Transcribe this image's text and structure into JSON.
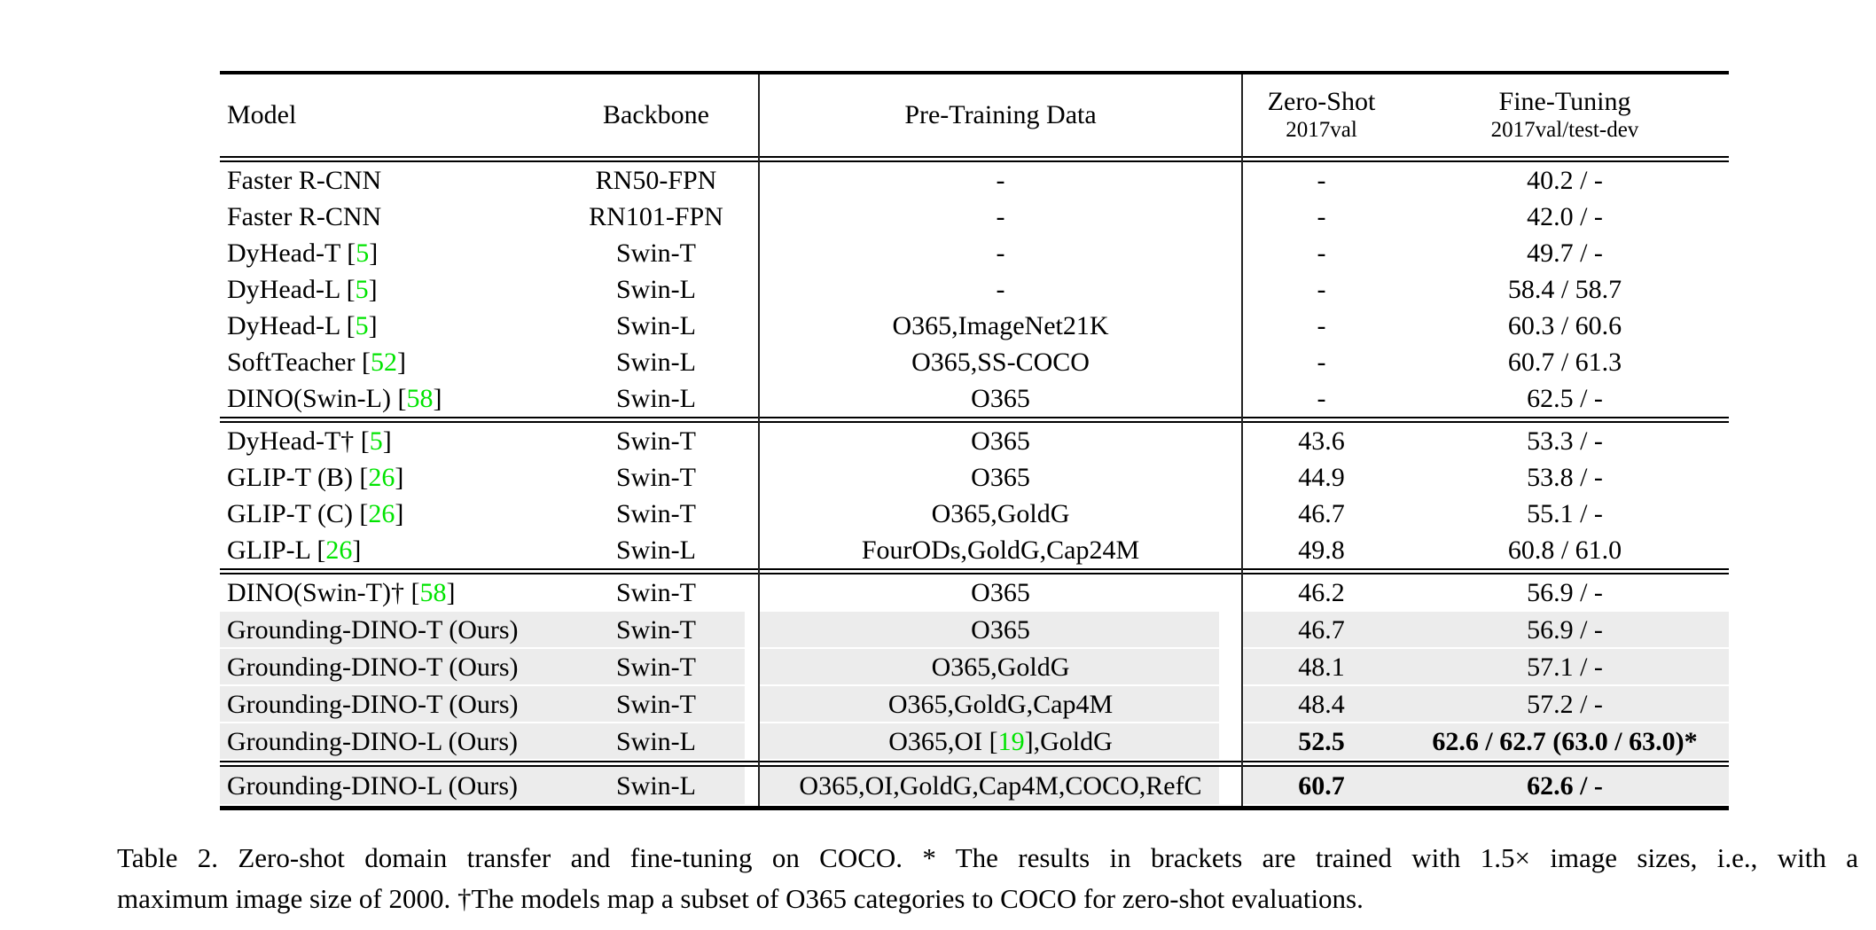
{
  "colors": {
    "citation_green": "#00e400",
    "row_highlight": "#ececec",
    "rule_black": "#000000",
    "page_background": "#ffffff"
  },
  "table": {
    "header": {
      "model": "Model",
      "backbone": "Backbone",
      "pretrain": "Pre-Training Data",
      "zeroshot_label": "Zero-Shot",
      "zeroshot_sublabel": "2017val",
      "finetune_label": "Fine-Tuning",
      "finetune_sublabel": "2017val/test-dev"
    },
    "sections": [
      {
        "rows": [
          {
            "model": "Faster R-CNN",
            "backbone": "RN50-FPN",
            "pretrain": "-",
            "zeroshot": "-",
            "finetune": "40.2 / -",
            "highlight": false,
            "bold": false
          },
          {
            "model": "Faster R-CNN",
            "backbone": "RN101-FPN",
            "pretrain": "-",
            "zeroshot": "-",
            "finetune": "42.0 / -",
            "highlight": false,
            "bold": false
          },
          {
            "model": "DyHead-T [5]",
            "backbone": "Swin-T",
            "pretrain": "-",
            "zeroshot": "-",
            "finetune": "49.7 / -",
            "highlight": false,
            "bold": false
          },
          {
            "model": "DyHead-L [5]",
            "backbone": "Swin-L",
            "pretrain": "-",
            "zeroshot": "-",
            "finetune": "58.4 / 58.7",
            "highlight": false,
            "bold": false
          },
          {
            "model": "DyHead-L [5]",
            "backbone": "Swin-L",
            "pretrain": "O365,ImageNet21K",
            "zeroshot": "-",
            "finetune": "60.3 / 60.6",
            "highlight": false,
            "bold": false
          },
          {
            "model": "SoftTeacher [52]",
            "backbone": "Swin-L",
            "pretrain": "O365,SS-COCO",
            "zeroshot": "-",
            "finetune": "60.7 / 61.3",
            "highlight": false,
            "bold": false
          },
          {
            "model": "DINO(Swin-L) [58]",
            "backbone": "Swin-L",
            "pretrain": "O365",
            "zeroshot": "-",
            "finetune": "62.5 / -",
            "highlight": false,
            "bold": false
          }
        ]
      },
      {
        "rows": [
          {
            "model": "DyHead-T† [5]",
            "backbone": "Swin-T",
            "pretrain": "O365",
            "zeroshot": "43.6",
            "finetune": "53.3 / -",
            "highlight": false,
            "bold": false
          },
          {
            "model": "GLIP-T (B) [26]",
            "backbone": "Swin-T",
            "pretrain": "O365",
            "zeroshot": "44.9",
            "finetune": "53.8 / -",
            "highlight": false,
            "bold": false
          },
          {
            "model": "GLIP-T (C) [26]",
            "backbone": "Swin-T",
            "pretrain": "O365,GoldG",
            "zeroshot": "46.7",
            "finetune": "55.1 / -",
            "highlight": false,
            "bold": false
          },
          {
            "model": "GLIP-L [26]",
            "backbone": "Swin-L",
            "pretrain": "FourODs,GoldG,Cap24M",
            "zeroshot": "49.8",
            "finetune": "60.8 / 61.0",
            "highlight": false,
            "bold": false
          }
        ]
      },
      {
        "rows": [
          {
            "model": "DINO(Swin-T)† [58]",
            "backbone": "Swin-T",
            "pretrain": "O365",
            "zeroshot": "46.2",
            "finetune": "56.9 / -",
            "highlight": false,
            "bold": false
          },
          {
            "model": "Grounding-DINO-T (Ours)",
            "backbone": "Swin-T",
            "pretrain": "O365",
            "zeroshot": "46.7",
            "finetune": "56.9 / -",
            "highlight": true,
            "bold": false
          },
          {
            "model": "Grounding-DINO-T (Ours)",
            "backbone": "Swin-T",
            "pretrain": "O365,GoldG",
            "zeroshot": "48.1",
            "finetune": "57.1 / -",
            "highlight": true,
            "bold": false
          },
          {
            "model": "Grounding-DINO-T (Ours)",
            "backbone": "Swin-T",
            "pretrain": "O365,GoldG,Cap4M",
            "zeroshot": "48.4",
            "finetune": "57.2 / -",
            "highlight": true,
            "bold": false
          },
          {
            "model": "Grounding-DINO-L (Ours)",
            "backbone": "Swin-L",
            "pretrain": "O365,OI [19],GoldG",
            "zeroshot": "52.5",
            "finetune": "62.6 / 62.7 (63.0 / 63.0)*",
            "highlight": true,
            "bold": true
          }
        ]
      },
      {
        "rows": [
          {
            "model": "Grounding-DINO-L (Ours)",
            "backbone": "Swin-L",
            "pretrain": "O365,OI,GoldG,Cap4M,COCO,RefC",
            "zeroshot": "60.7",
            "finetune": "62.6 / -",
            "highlight": true,
            "bold": true
          }
        ]
      }
    ]
  },
  "caption": {
    "line1": "Table 2.  Zero-shot domain transfer and fine-tuning on COCO. * The results in brackets are trained with 1.5× image sizes, i.e., with a",
    "line2": "maximum image size of 2000. †The models map a subset of O365 categories to COCO for zero-shot evaluations."
  }
}
